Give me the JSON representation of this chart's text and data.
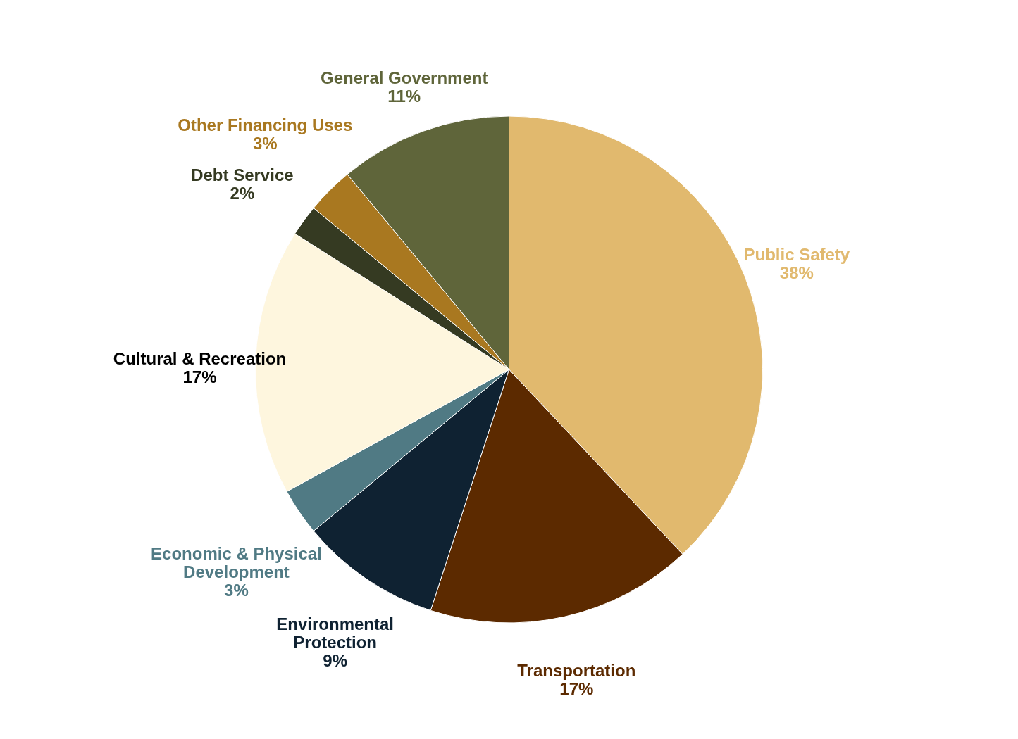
{
  "chart_data": {
    "type": "pie",
    "categories": [
      "Public Safety",
      "Transportation",
      "Environmental Protection",
      "Economic & Physical Development",
      "Cultural & Recreation",
      "Debt Service",
      "Other Financing Uses",
      "General Government"
    ],
    "values": [
      38,
      17,
      9,
      3,
      17,
      2,
      3,
      11
    ],
    "colors": [
      "#e1b96e",
      "#5c2a00",
      "#0f2232",
      "#507a84",
      "#fef6de",
      "#353a22",
      "#a97820",
      "#5f653a"
    ],
    "value_labels": [
      "38%",
      "17%",
      "9%",
      "3%",
      "17%",
      "2%",
      "3%",
      "11%"
    ],
    "data_labels": true
  }
}
